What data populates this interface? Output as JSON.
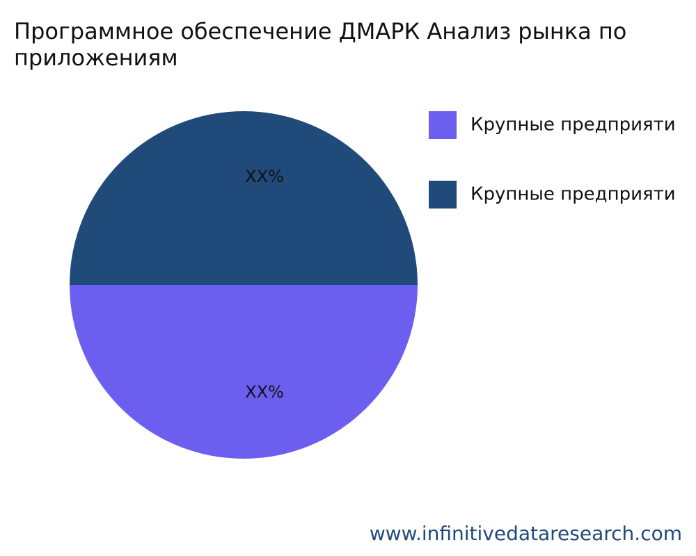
{
  "chart_data": {
    "type": "pie",
    "title": "Программное обеспечение ДМАРК Анализ рынка по приложениям",
    "categories": [
      "Крупные предприяти",
      "Крупные предприяти"
    ],
    "values": [
      50,
      50
    ],
    "value_labels": [
      "XX%",
      "XX%"
    ],
    "colors": [
      "#6c5ff0",
      "#1f4a7a"
    ],
    "legend": "top-right",
    "watermark": "www.infinitivedataresearch.com"
  }
}
